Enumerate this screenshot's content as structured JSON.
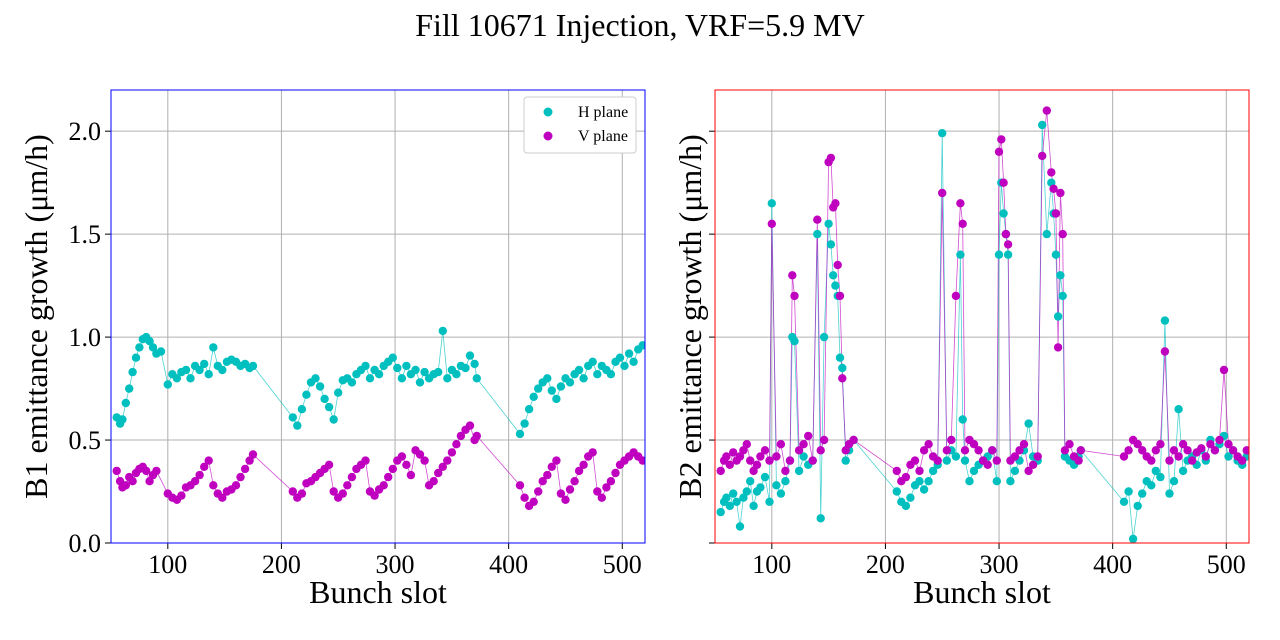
{
  "figure": {
    "title": "Fill 10671 Injection, VRF=5.9 MV"
  },
  "colors": {
    "h_plane": "#00bfbf",
    "v_plane": "#bf00bf",
    "frame_left": "#0000ff",
    "frame_right": "#ff0000",
    "grid": "#b0b0b0"
  },
  "chart_data": [
    {
      "type": "scatter",
      "title": "",
      "xlabel": "Bunch slot",
      "ylabel": "B1 emittance growth (μm/h)",
      "xlim": [
        50,
        520
      ],
      "ylim": [
        0.0,
        2.2
      ],
      "xticks": [
        100,
        200,
        300,
        400,
        500
      ],
      "yticks": [
        0.0,
        0.5,
        1.0,
        1.5,
        2.0
      ],
      "ytick_labels": [
        "0.0",
        "0.5",
        "1.0",
        "1.5",
        "2.0"
      ],
      "grid": true,
      "frame_color": "blue",
      "legend": {
        "position": "top-right",
        "entries": [
          "H plane",
          "V plane"
        ]
      },
      "series": [
        {
          "name": "H plane",
          "color": "#00bfbf",
          "x": [
            55,
            58,
            60,
            63,
            66,
            69,
            72,
            75,
            78,
            81,
            84,
            87,
            90,
            94,
            100,
            104,
            108,
            112,
            116,
            120,
            124,
            128,
            132,
            136,
            140,
            144,
            148,
            152,
            156,
            160,
            164,
            168,
            172,
            175,
            210,
            214,
            218,
            222,
            226,
            230,
            234,
            238,
            242,
            246,
            250,
            254,
            258,
            262,
            266,
            270,
            274,
            278,
            282,
            286,
            290,
            294,
            298,
            302,
            306,
            310,
            314,
            318,
            322,
            326,
            330,
            334,
            338,
            342,
            346,
            350,
            354,
            358,
            362,
            366,
            370,
            372,
            410,
            414,
            418,
            422,
            426,
            430,
            434,
            438,
            442,
            446,
            450,
            454,
            458,
            462,
            466,
            470,
            474,
            478,
            482,
            486,
            490,
            494,
            498,
            502,
            506,
            510,
            514,
            518
          ],
          "y": [
            0.61,
            0.58,
            0.6,
            0.68,
            0.75,
            0.83,
            0.9,
            0.95,
            0.99,
            1.0,
            0.98,
            0.95,
            0.92,
            0.93,
            0.77,
            0.82,
            0.8,
            0.83,
            0.84,
            0.8,
            0.86,
            0.84,
            0.87,
            0.82,
            0.95,
            0.86,
            0.84,
            0.88,
            0.89,
            0.88,
            0.86,
            0.87,
            0.85,
            0.86,
            0.61,
            0.57,
            0.65,
            0.72,
            0.78,
            0.8,
            0.76,
            0.7,
            0.66,
            0.6,
            0.73,
            0.79,
            0.8,
            0.78,
            0.82,
            0.84,
            0.86,
            0.8,
            0.84,
            0.82,
            0.86,
            0.88,
            0.9,
            0.85,
            0.8,
            0.86,
            0.82,
            0.84,
            0.78,
            0.83,
            0.8,
            0.82,
            0.83,
            1.03,
            0.8,
            0.84,
            0.82,
            0.86,
            0.85,
            0.91,
            0.87,
            0.8,
            0.53,
            0.58,
            0.65,
            0.71,
            0.75,
            0.78,
            0.8,
            0.74,
            0.7,
            0.76,
            0.8,
            0.78,
            0.82,
            0.84,
            0.8,
            0.86,
            0.88,
            0.82,
            0.86,
            0.84,
            0.82,
            0.88,
            0.9,
            0.86,
            0.92,
            0.88,
            0.94,
            0.96
          ]
        },
        {
          "name": "V plane",
          "color": "#bf00bf",
          "x": [
            55,
            58,
            60,
            63,
            66,
            69,
            72,
            75,
            78,
            81,
            84,
            87,
            90,
            100,
            104,
            108,
            112,
            116,
            120,
            124,
            128,
            132,
            136,
            140,
            144,
            148,
            152,
            156,
            160,
            164,
            168,
            172,
            175,
            210,
            214,
            218,
            222,
            226,
            230,
            234,
            238,
            242,
            246,
            250,
            254,
            258,
            262,
            266,
            270,
            274,
            278,
            282,
            286,
            290,
            294,
            298,
            302,
            306,
            310,
            314,
            318,
            322,
            326,
            330,
            334,
            338,
            342,
            346,
            350,
            354,
            358,
            362,
            366,
            370,
            372,
            410,
            414,
            418,
            422,
            426,
            430,
            434,
            438,
            442,
            446,
            450,
            454,
            458,
            462,
            466,
            470,
            474,
            478,
            482,
            486,
            490,
            494,
            498,
            502,
            506,
            510,
            514,
            518
          ],
          "y": [
            0.35,
            0.3,
            0.27,
            0.28,
            0.32,
            0.3,
            0.34,
            0.36,
            0.37,
            0.35,
            0.3,
            0.33,
            0.35,
            0.24,
            0.22,
            0.21,
            0.23,
            0.27,
            0.28,
            0.3,
            0.33,
            0.37,
            0.4,
            0.28,
            0.24,
            0.22,
            0.25,
            0.26,
            0.28,
            0.32,
            0.36,
            0.4,
            0.43,
            0.25,
            0.22,
            0.24,
            0.29,
            0.3,
            0.32,
            0.34,
            0.36,
            0.38,
            0.25,
            0.22,
            0.24,
            0.28,
            0.32,
            0.36,
            0.38,
            0.4,
            0.25,
            0.23,
            0.26,
            0.28,
            0.32,
            0.36,
            0.4,
            0.42,
            0.38,
            0.33,
            0.45,
            0.43,
            0.4,
            0.28,
            0.3,
            0.34,
            0.37,
            0.4,
            0.44,
            0.48,
            0.52,
            0.55,
            0.57,
            0.5,
            0.52,
            0.28,
            0.22,
            0.18,
            0.2,
            0.25,
            0.3,
            0.33,
            0.37,
            0.4,
            0.24,
            0.21,
            0.26,
            0.3,
            0.35,
            0.38,
            0.42,
            0.44,
            0.25,
            0.22,
            0.27,
            0.3,
            0.34,
            0.38,
            0.4,
            0.42,
            0.44,
            0.42,
            0.4
          ]
        }
      ]
    },
    {
      "type": "scatter",
      "title": "",
      "xlabel": "Bunch slot",
      "ylabel": "B2 emittance growth (μm/h)",
      "xlim": [
        50,
        520
      ],
      "ylim": [
        0.0,
        2.2
      ],
      "xticks": [
        100,
        200,
        300,
        400,
        500
      ],
      "yticks": [
        0.0,
        0.5,
        1.0,
        1.5,
        2.0
      ],
      "ytick_labels": [],
      "grid": true,
      "frame_color": "red",
      "series": [
        {
          "name": "H plane",
          "color": "#00bfbf",
          "x": [
            55,
            58,
            60,
            63,
            66,
            69,
            72,
            75,
            78,
            81,
            84,
            87,
            90,
            94,
            98,
            100,
            104,
            108,
            112,
            116,
            118,
            120,
            124,
            128,
            132,
            136,
            140,
            143,
            146,
            150,
            152,
            154,
            156,
            158,
            160,
            162,
            165,
            168,
            172,
            210,
            214,
            218,
            222,
            226,
            230,
            234,
            238,
            242,
            246,
            250,
            254,
            258,
            262,
            266,
            268,
            270,
            274,
            278,
            282,
            286,
            290,
            294,
            298,
            300,
            302,
            304,
            306,
            308,
            310,
            314,
            318,
            322,
            326,
            330,
            334,
            338,
            342,
            346,
            348,
            350,
            352,
            354,
            356,
            358,
            362,
            366,
            370,
            372,
            410,
            414,
            418,
            422,
            426,
            430,
            434,
            438,
            442,
            446,
            450,
            454,
            458,
            462,
            466,
            470,
            474,
            478,
            482,
            486,
            490,
            494,
            498,
            502,
            506,
            510,
            514,
            518
          ],
          "y": [
            0.15,
            0.2,
            0.22,
            0.18,
            0.24,
            0.2,
            0.08,
            0.22,
            0.25,
            0.3,
            0.18,
            0.25,
            0.27,
            0.32,
            0.2,
            1.65,
            0.28,
            0.24,
            0.3,
            0.4,
            1.0,
            0.98,
            0.35,
            0.42,
            0.38,
            0.4,
            1.5,
            0.12,
            1.0,
            1.55,
            1.45,
            1.3,
            1.25,
            1.2,
            0.9,
            0.85,
            0.4,
            0.45,
            0.5,
            0.25,
            0.2,
            0.18,
            0.22,
            0.28,
            0.3,
            0.26,
            0.3,
            0.35,
            0.38,
            1.99,
            0.4,
            0.45,
            0.42,
            1.4,
            0.6,
            0.4,
            0.3,
            0.35,
            0.38,
            0.4,
            0.42,
            0.45,
            0.3,
            1.4,
            1.75,
            1.6,
            1.5,
            1.4,
            0.3,
            0.35,
            0.4,
            0.45,
            0.58,
            0.42,
            0.4,
            2.03,
            1.5,
            1.75,
            1.6,
            1.4,
            1.1,
            1.3,
            1.2,
            0.42,
            0.4,
            0.38,
            0.42,
            0.45,
            0.2,
            0.25,
            0.02,
            0.18,
            0.24,
            0.3,
            0.28,
            0.35,
            0.32,
            1.08,
            0.24,
            0.3,
            0.65,
            0.35,
            0.4,
            0.42,
            0.38,
            0.45,
            0.4,
            0.5,
            0.45,
            0.48,
            0.52,
            0.42,
            0.45,
            0.4,
            0.38,
            0.42
          ]
        },
        {
          "name": "V plane",
          "color": "#bf00bf",
          "x": [
            55,
            58,
            60,
            63,
            66,
            69,
            72,
            75,
            78,
            81,
            84,
            87,
            90,
            94,
            98,
            100,
            104,
            108,
            112,
            116,
            118,
            120,
            124,
            128,
            132,
            136,
            140,
            143,
            146,
            150,
            152,
            154,
            156,
            158,
            160,
            162,
            165,
            168,
            172,
            210,
            214,
            218,
            222,
            226,
            230,
            234,
            238,
            242,
            246,
            250,
            254,
            258,
            262,
            266,
            268,
            270,
            274,
            278,
            282,
            286,
            290,
            294,
            298,
            300,
            302,
            304,
            306,
            308,
            310,
            314,
            318,
            322,
            326,
            330,
            334,
            338,
            342,
            346,
            348,
            350,
            352,
            354,
            356,
            358,
            362,
            366,
            370,
            372,
            410,
            414,
            418,
            422,
            426,
            430,
            434,
            438,
            442,
            446,
            450,
            454,
            458,
            462,
            466,
            470,
            474,
            478,
            482,
            486,
            490,
            494,
            498,
            502,
            506,
            510,
            514,
            518
          ],
          "y": [
            0.35,
            0.4,
            0.42,
            0.38,
            0.44,
            0.4,
            0.42,
            0.45,
            0.48,
            0.4,
            0.35,
            0.38,
            0.42,
            0.45,
            0.4,
            1.55,
            0.42,
            0.48,
            0.35,
            0.4,
            1.3,
            1.2,
            0.45,
            0.48,
            0.52,
            0.4,
            1.57,
            0.45,
            0.5,
            1.85,
            1.87,
            1.63,
            1.65,
            1.35,
            1.2,
            0.8,
            0.45,
            0.48,
            0.5,
            0.35,
            0.3,
            0.32,
            0.38,
            0.4,
            0.35,
            0.45,
            0.48,
            0.42,
            0.4,
            1.7,
            0.45,
            0.5,
            1.2,
            1.65,
            1.55,
            0.45,
            0.5,
            0.48,
            0.45,
            0.4,
            0.38,
            0.45,
            0.4,
            1.9,
            1.96,
            1.75,
            1.5,
            1.45,
            0.4,
            0.42,
            0.45,
            0.48,
            0.35,
            0.38,
            0.42,
            1.88,
            2.1,
            1.8,
            1.72,
            1.6,
            0.95,
            1.7,
            1.5,
            0.45,
            0.48,
            0.42,
            0.4,
            0.45,
            0.42,
            0.45,
            0.5,
            0.48,
            0.45,
            0.42,
            0.4,
            0.45,
            0.48,
            0.93,
            0.4,
            0.45,
            0.42,
            0.48,
            0.45,
            0.4,
            0.44,
            0.46,
            0.42,
            0.48,
            0.45,
            0.5,
            0.84,
            0.48,
            0.45,
            0.42,
            0.4,
            0.45
          ]
        }
      ]
    }
  ]
}
